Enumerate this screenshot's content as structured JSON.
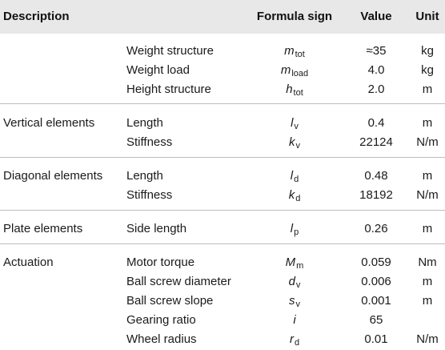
{
  "header": {
    "description": "Description",
    "formula_sign": "Formula sign",
    "value": "Value",
    "unit": "Unit"
  },
  "groups": [
    {
      "description": "",
      "rows": [
        {
          "parameter": "Weight structure",
          "sym": "m",
          "sub": "tot",
          "value": "≈35",
          "unit": "kg"
        },
        {
          "parameter": "Weight load",
          "sym": "m",
          "sub": "load",
          "value": "4.0",
          "unit": "kg"
        },
        {
          "parameter": "Height structure",
          "sym": "h",
          "sub": "tot",
          "value": "2.0",
          "unit": "m"
        }
      ]
    },
    {
      "description": "Vertical elements",
      "rows": [
        {
          "parameter": "Length",
          "sym": "l",
          "sub": "v",
          "value": "0.4",
          "unit": "m"
        },
        {
          "parameter": "Stiffness",
          "sym": "k",
          "sub": "v",
          "value": "22124",
          "unit": "N/m"
        }
      ]
    },
    {
      "description": "Diagonal elements",
      "rows": [
        {
          "parameter": "Length",
          "sym": "l",
          "sub": "d",
          "value": "0.48",
          "unit": "m"
        },
        {
          "parameter": "Stiffness",
          "sym": "k",
          "sub": "d",
          "value": "18192",
          "unit": "N/m"
        }
      ]
    },
    {
      "description": "Plate elements",
      "rows": [
        {
          "parameter": "Side length",
          "sym": "l",
          "sub": "p",
          "value": "0.26",
          "unit": "m"
        }
      ]
    },
    {
      "description": "Actuation",
      "rows": [
        {
          "parameter": "Motor torque",
          "sym": "M",
          "sub": "m",
          "value": "0.059",
          "unit": "Nm"
        },
        {
          "parameter": "Ball screw diameter",
          "sym": "d",
          "sub": "v",
          "value": "0.006",
          "unit": "m"
        },
        {
          "parameter": "Ball screw slope",
          "sym": "s",
          "sub": "v",
          "value": "0.001",
          "unit": "m"
        },
        {
          "parameter": "Gearing ratio",
          "sym": "i",
          "sub": "",
          "value": "65",
          "unit": ""
        },
        {
          "parameter": "Wheel radius",
          "sym": "r",
          "sub": "d",
          "value": "0.01",
          "unit": "N/m"
        }
      ]
    }
  ]
}
